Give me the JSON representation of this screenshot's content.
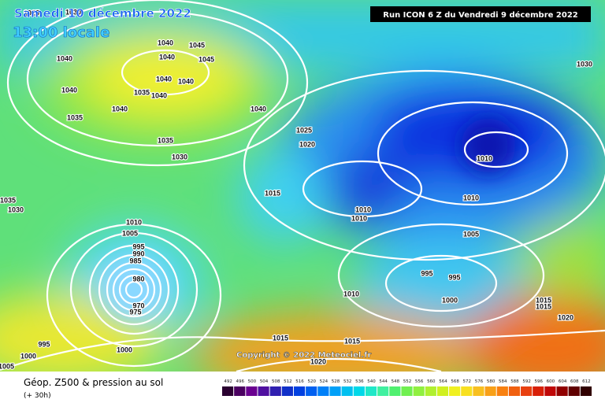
{
  "header": {
    "date": "Samedi 10 décembre 2022",
    "time": "13:00 locale",
    "run": "Run ICON 6 Z du Vendredi 9 décembre 2022"
  },
  "copyright": "Copyright © 2022 Meteociel.fr",
  "footer": {
    "title": "Géop. Z500 & pression au sol",
    "lead": "(+ 30h)"
  },
  "colorbar": [
    492,
    496,
    500,
    504,
    508,
    512,
    516,
    520,
    524,
    528,
    532,
    536,
    540,
    544,
    548,
    552,
    556,
    560,
    564,
    568,
    572,
    576,
    580,
    584,
    588,
    592,
    596,
    600,
    604,
    608,
    612
  ],
  "isobars": [
    "1025",
    "1030",
    "1040",
    "1040",
    "1045",
    "1040",
    "1045",
    "1040",
    "1040",
    "1035",
    "1040",
    "1040",
    "1040",
    "1035",
    "1035",
    "1030",
    "1040",
    "1025",
    "1020",
    "1015",
    "1030",
    "1010",
    "1010",
    "1010",
    "1010",
    "1005",
    "995",
    "995",
    "1000",
    "1010",
    "1015",
    "1015",
    "1020",
    "1015",
    "1015",
    "1020",
    "1010",
    "1005",
    "995",
    "990",
    "985",
    "980",
    "975",
    "970",
    "995",
    "1000",
    "1000",
    "1035",
    "1030",
    "1005"
  ]
}
